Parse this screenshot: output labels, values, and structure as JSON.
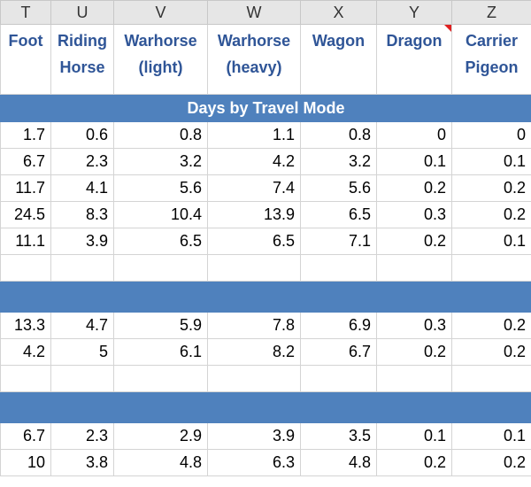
{
  "columns": [
    "T",
    "U",
    "V",
    "W",
    "X",
    "Y",
    "Z"
  ],
  "headers": [
    "Foot",
    "Riding Horse",
    "Warhorse (light)",
    "Warhorse (heavy)",
    "Wagon",
    "Dragon",
    "Carrier Pigeon"
  ],
  "band_title": "Days by Travel Mode",
  "accent_color": "#4f81bd",
  "header_text_color": "#2f5597",
  "group1": [
    [
      "1.7",
      "0.6",
      "0.8",
      "1.1",
      "0.8",
      "0",
      "0"
    ],
    [
      "6.7",
      "2.3",
      "3.2",
      "4.2",
      "3.2",
      "0.1",
      "0.1"
    ],
    [
      "11.7",
      "4.1",
      "5.6",
      "7.4",
      "5.6",
      "0.2",
      "0.2"
    ],
    [
      "24.5",
      "8.3",
      "10.4",
      "13.9",
      "6.5",
      "0.3",
      "0.2"
    ],
    [
      "11.1",
      "3.9",
      "6.5",
      "6.5",
      "7.1",
      "0.2",
      "0.1"
    ]
  ],
  "group2": [
    [
      "13.3",
      "4.7",
      "5.9",
      "7.8",
      "6.9",
      "0.3",
      "0.2"
    ],
    [
      "4.2",
      "5",
      "6.1",
      "8.2",
      "6.7",
      "0.2",
      "0.2"
    ]
  ],
  "group3": [
    [
      "6.7",
      "2.3",
      "2.9",
      "3.9",
      "3.5",
      "0.1",
      "0.1"
    ],
    [
      "10",
      "3.8",
      "4.8",
      "6.3",
      "4.8",
      "0.2",
      "0.2"
    ]
  ]
}
